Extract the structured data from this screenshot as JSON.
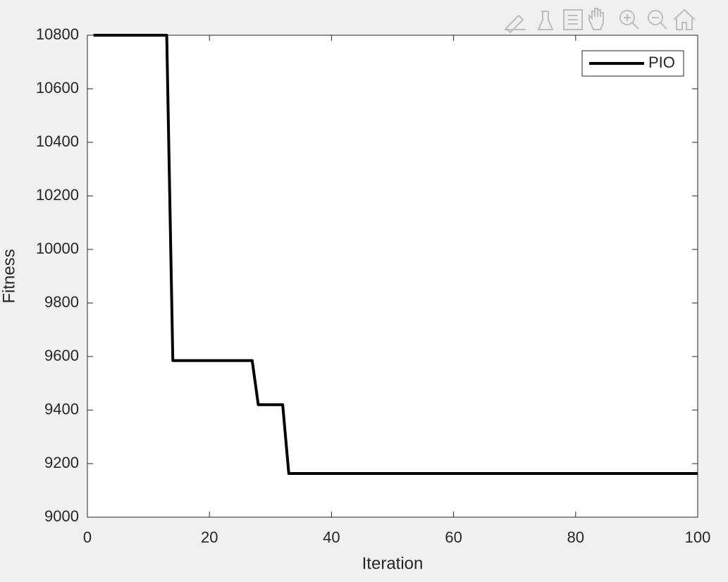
{
  "chart_data": {
    "type": "line",
    "xlabel": "Iteration",
    "ylabel": "Fitness",
    "x": [
      1,
      13,
      14,
      27,
      28,
      32,
      33,
      100
    ],
    "series": [
      {
        "name": "PIO",
        "color": "#000000",
        "values": [
          10800,
          10800,
          9585,
          9585,
          9420,
          9420,
          9163,
          9163
        ]
      }
    ],
    "xlim": [
      0,
      100
    ],
    "xticks": [
      0,
      20,
      40,
      60,
      80,
      100
    ],
    "ylim": [
      9000,
      10800
    ],
    "yticks": [
      9000,
      9200,
      9400,
      9600,
      9800,
      10000,
      10200,
      10400,
      10600,
      10800
    ],
    "legend": "northeast"
  }
}
